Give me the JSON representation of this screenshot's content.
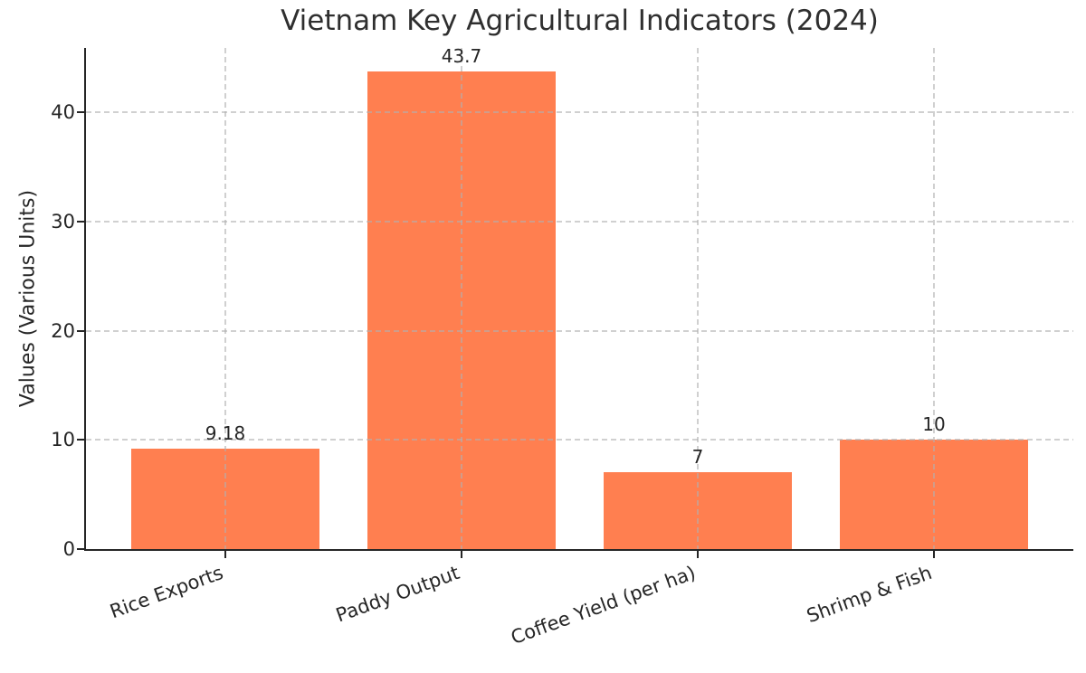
{
  "chart_data": {
    "type": "bar",
    "title": "Vietnam Key Agricultural Indicators (2024)",
    "ylabel": "Values (Various Units)",
    "xlabel": "",
    "categories": [
      "Rice Exports",
      "Paddy Output",
      "Coffee Yield (per ha)",
      "Shrimp & Fish"
    ],
    "values": [
      9.18,
      43.7,
      7,
      10
    ],
    "value_labels": [
      "9.18",
      "43.7",
      "7",
      "10"
    ],
    "yticks": [
      0,
      10,
      20,
      30,
      40
    ],
    "ylim": [
      0,
      45.885
    ],
    "bar_color": "#FF7F50",
    "grid_color": "#b0b0b0",
    "grid_style": "dashed",
    "axis_color": "#262626",
    "text_color": "#262626",
    "x_tick_rotation_deg": 20,
    "legend": "none"
  }
}
